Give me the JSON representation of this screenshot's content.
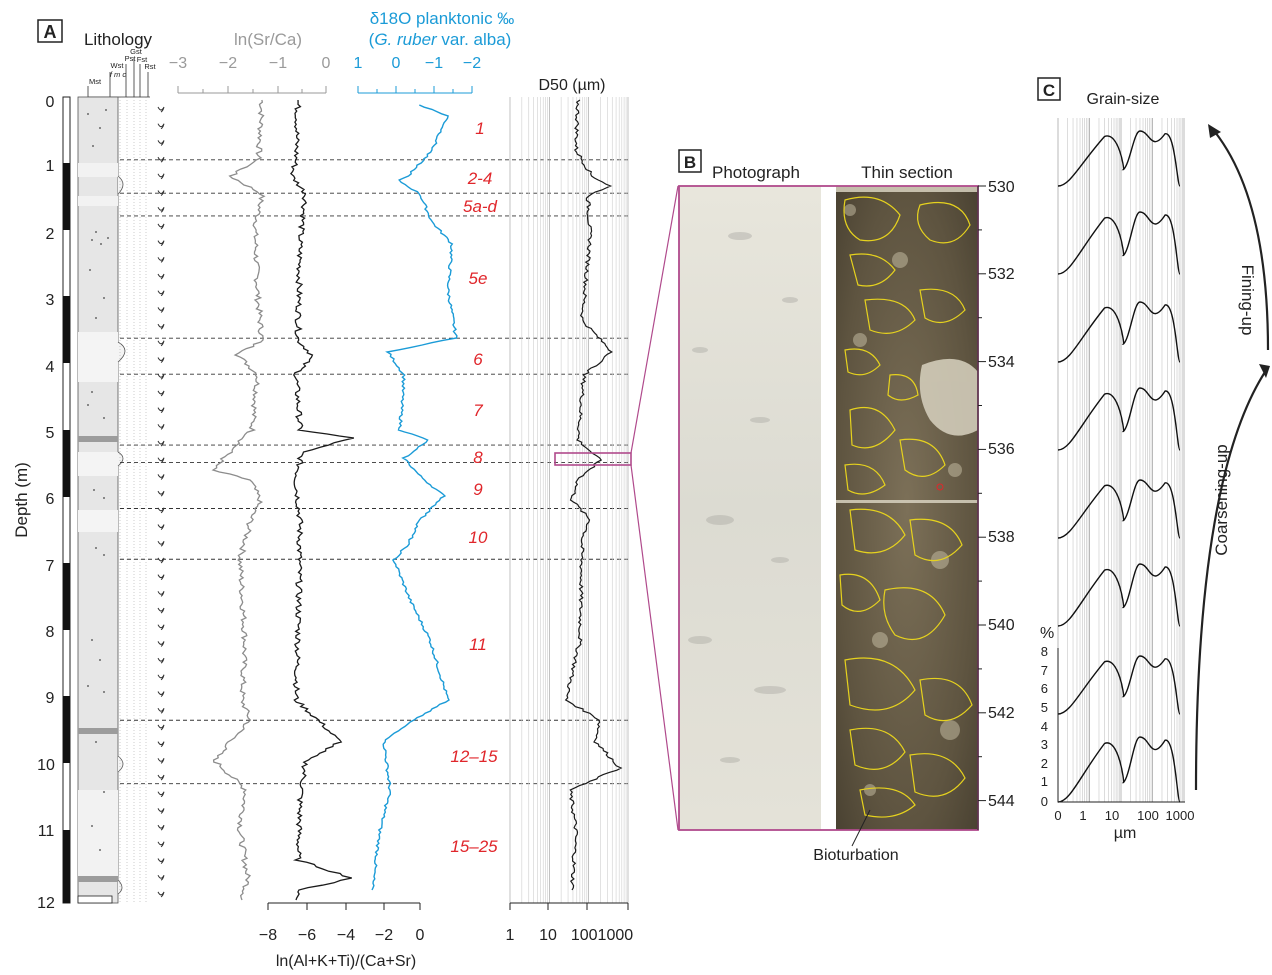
{
  "panels": {
    "a": "A",
    "b": "B",
    "c": "C"
  },
  "colors": {
    "accent_red": "#e0262b",
    "accent_blue": "#1b9bd7",
    "grey_curve": "#8c8c8c",
    "frame_magenta": "#b04a8c",
    "outline_yellow": "#e6d21e"
  },
  "panel_a": {
    "lithology_title": "Lithology",
    "lithology_classes": [
      "Mst",
      "Wst",
      "Pst",
      "Gst",
      "Fst",
      "Rst"
    ],
    "lithology_sub": "f m c",
    "srca_title": "ln(Sr/Ca)",
    "srca_ticks": [
      "−3",
      "−2",
      "−1",
      "0"
    ],
    "d18o_title": "δ18O planktonic ‰",
    "d18o_species_prefix": "(",
    "d18o_species": "G. ruber",
    "d18o_species_suffix": " var. alba)",
    "d18o_ticks": [
      "1",
      "0",
      "−1",
      "−2"
    ],
    "d50_title": "D50 (µm)",
    "d50_ticks": [
      "1",
      "10",
      "1001000"
    ],
    "depth_label": "Depth (m)",
    "depth_ticks": [
      "0",
      "1",
      "2",
      "3",
      "4",
      "5",
      "6",
      "7",
      "8",
      "9",
      "10",
      "11",
      "12"
    ],
    "alktr_ticks": [
      "−8",
      "−6",
      "−4",
      "−2",
      "0"
    ],
    "alktr_title": "ln(Al+K+Ti)/(Ca+Sr)",
    "mis_labels": [
      "1",
      "2-4",
      "5a-d",
      "5e",
      "6",
      "7",
      "8",
      "9",
      "10",
      "11",
      "12–15",
      "15–25"
    ]
  },
  "panel_b": {
    "photo_title": "Photograph",
    "thin_title": "Thin section",
    "depth_ticks": [
      "530",
      "532",
      "534",
      "536",
      "538",
      "540",
      "542",
      "544"
    ],
    "annotation": "Bioturbation"
  },
  "panel_c": {
    "title": "Grain-size",
    "y_unit": "%",
    "y_ticks": [
      "8",
      "7",
      "6",
      "5",
      "4",
      "3",
      "2",
      "1",
      "0"
    ],
    "x_ticks": [
      "0",
      "1",
      "10",
      "100",
      "1000"
    ],
    "x_unit": "µm",
    "arrow_up": "Fining-up",
    "arrow_down": "Coarsening-up"
  }
}
